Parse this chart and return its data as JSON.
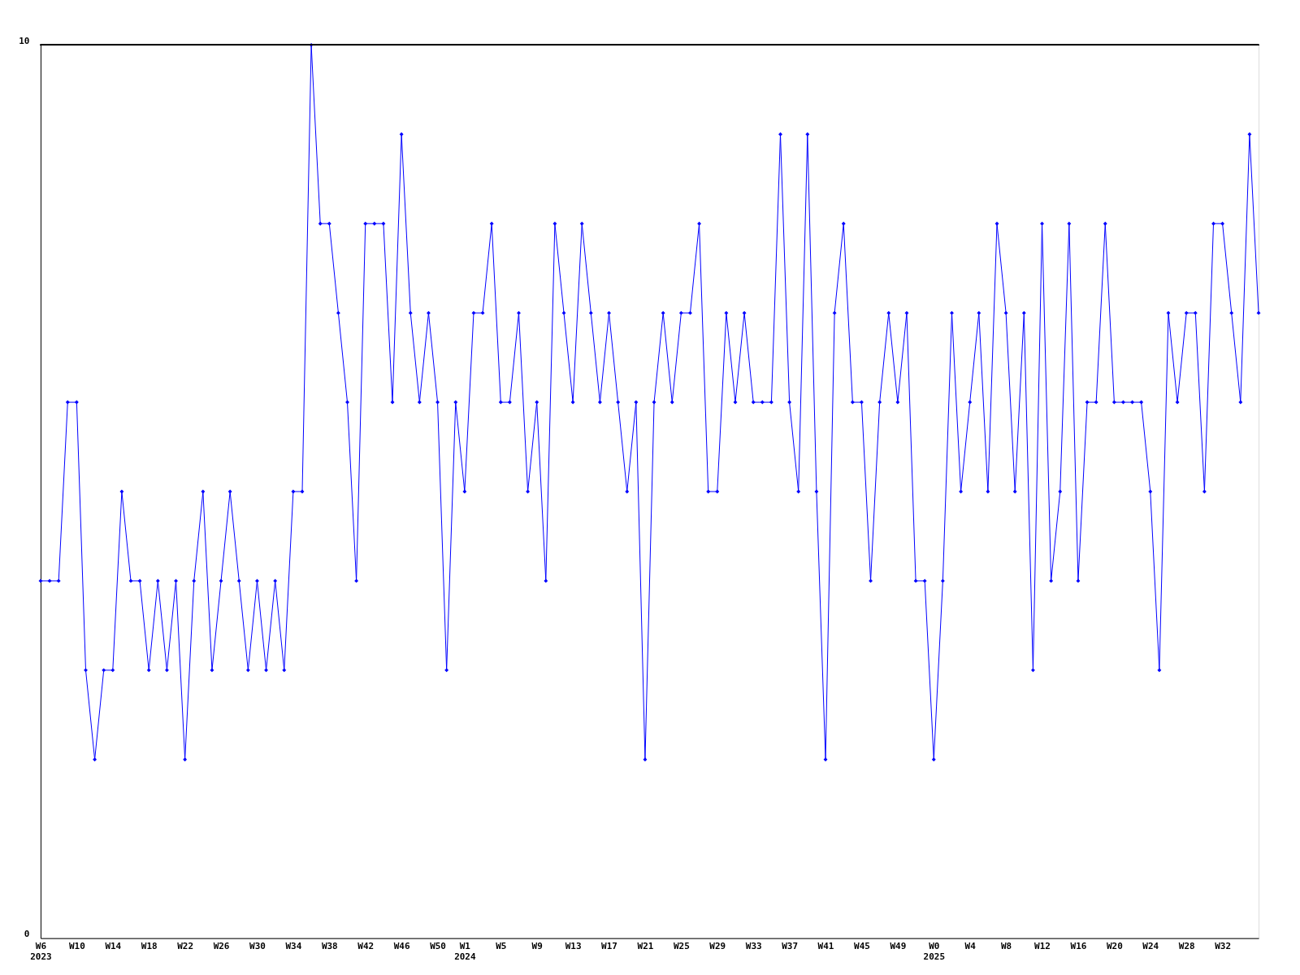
{
  "chart_data": {
    "type": "line",
    "categories": [
      "W6\n2023",
      null,
      null,
      null,
      "W10",
      null,
      null,
      null,
      "W14",
      null,
      null,
      null,
      "W18",
      null,
      null,
      null,
      "W22",
      null,
      null,
      null,
      "W26",
      null,
      null,
      null,
      "W30",
      null,
      null,
      null,
      "W34",
      null,
      null,
      null,
      "W38",
      null,
      null,
      null,
      "W42",
      null,
      null,
      null,
      "W46",
      null,
      null,
      null,
      "W50",
      null,
      null,
      "W1\n2024",
      null,
      null,
      null,
      "W5",
      null,
      null,
      null,
      "W9",
      null,
      null,
      null,
      "W13",
      null,
      null,
      null,
      "W17",
      null,
      null,
      null,
      "W21",
      null,
      null,
      null,
      "W25",
      null,
      null,
      null,
      "W29",
      null,
      null,
      null,
      "W33",
      null,
      null,
      null,
      "W37",
      null,
      null,
      null,
      "W41",
      null,
      null,
      null,
      "W45",
      null,
      null,
      null,
      "W49",
      null,
      null,
      null,
      "W0\n2025",
      null,
      null,
      null,
      "W4",
      null,
      null,
      null,
      "W8",
      null,
      null,
      null,
      "W12",
      null,
      null,
      null,
      "W16",
      null,
      null,
      null,
      "W20",
      null,
      null,
      null,
      "W24",
      null,
      null,
      null,
      "W28",
      null,
      null,
      null,
      "W32",
      null,
      null,
      null,
      null
    ],
    "series": [
      {
        "color": "#0000ff",
        "values": [
          4,
          4,
          4,
          6,
          6,
          3,
          2,
          3,
          3,
          5,
          4,
          4,
          3,
          4,
          3,
          4,
          2,
          4,
          5,
          3,
          4,
          5,
          4,
          3,
          4,
          3,
          4,
          3,
          5,
          5,
          10,
          8,
          8,
          7,
          6,
          4,
          8,
          8,
          8,
          6,
          9,
          7,
          6,
          7,
          6,
          3,
          6,
          5,
          7,
          7,
          8,
          6,
          6,
          7,
          5,
          6,
          4,
          8,
          7,
          6,
          8,
          7,
          6,
          7,
          6,
          5,
          6,
          2,
          6,
          7,
          6,
          7,
          7,
          8,
          5,
          5,
          7,
          6,
          7,
          6,
          6,
          6,
          9,
          6,
          5,
          9,
          5,
          2,
          7,
          8,
          6,
          6,
          4,
          6,
          7,
          6,
          7,
          4,
          4,
          2,
          4,
          7,
          5,
          6,
          7,
          5,
          8,
          7,
          5,
          7,
          3,
          8,
          4,
          5,
          8,
          4,
          6,
          6,
          8,
          6,
          6,
          6,
          6,
          5,
          3,
          7,
          6,
          7,
          7,
          5,
          8,
          8,
          7,
          6,
          9,
          7
        ]
      }
    ],
    "ylim": [
      0,
      10
    ],
    "yticks": [
      0,
      10
    ],
    "grid": false,
    "legend": false,
    "marker": "diamond",
    "line_style": "solid"
  }
}
